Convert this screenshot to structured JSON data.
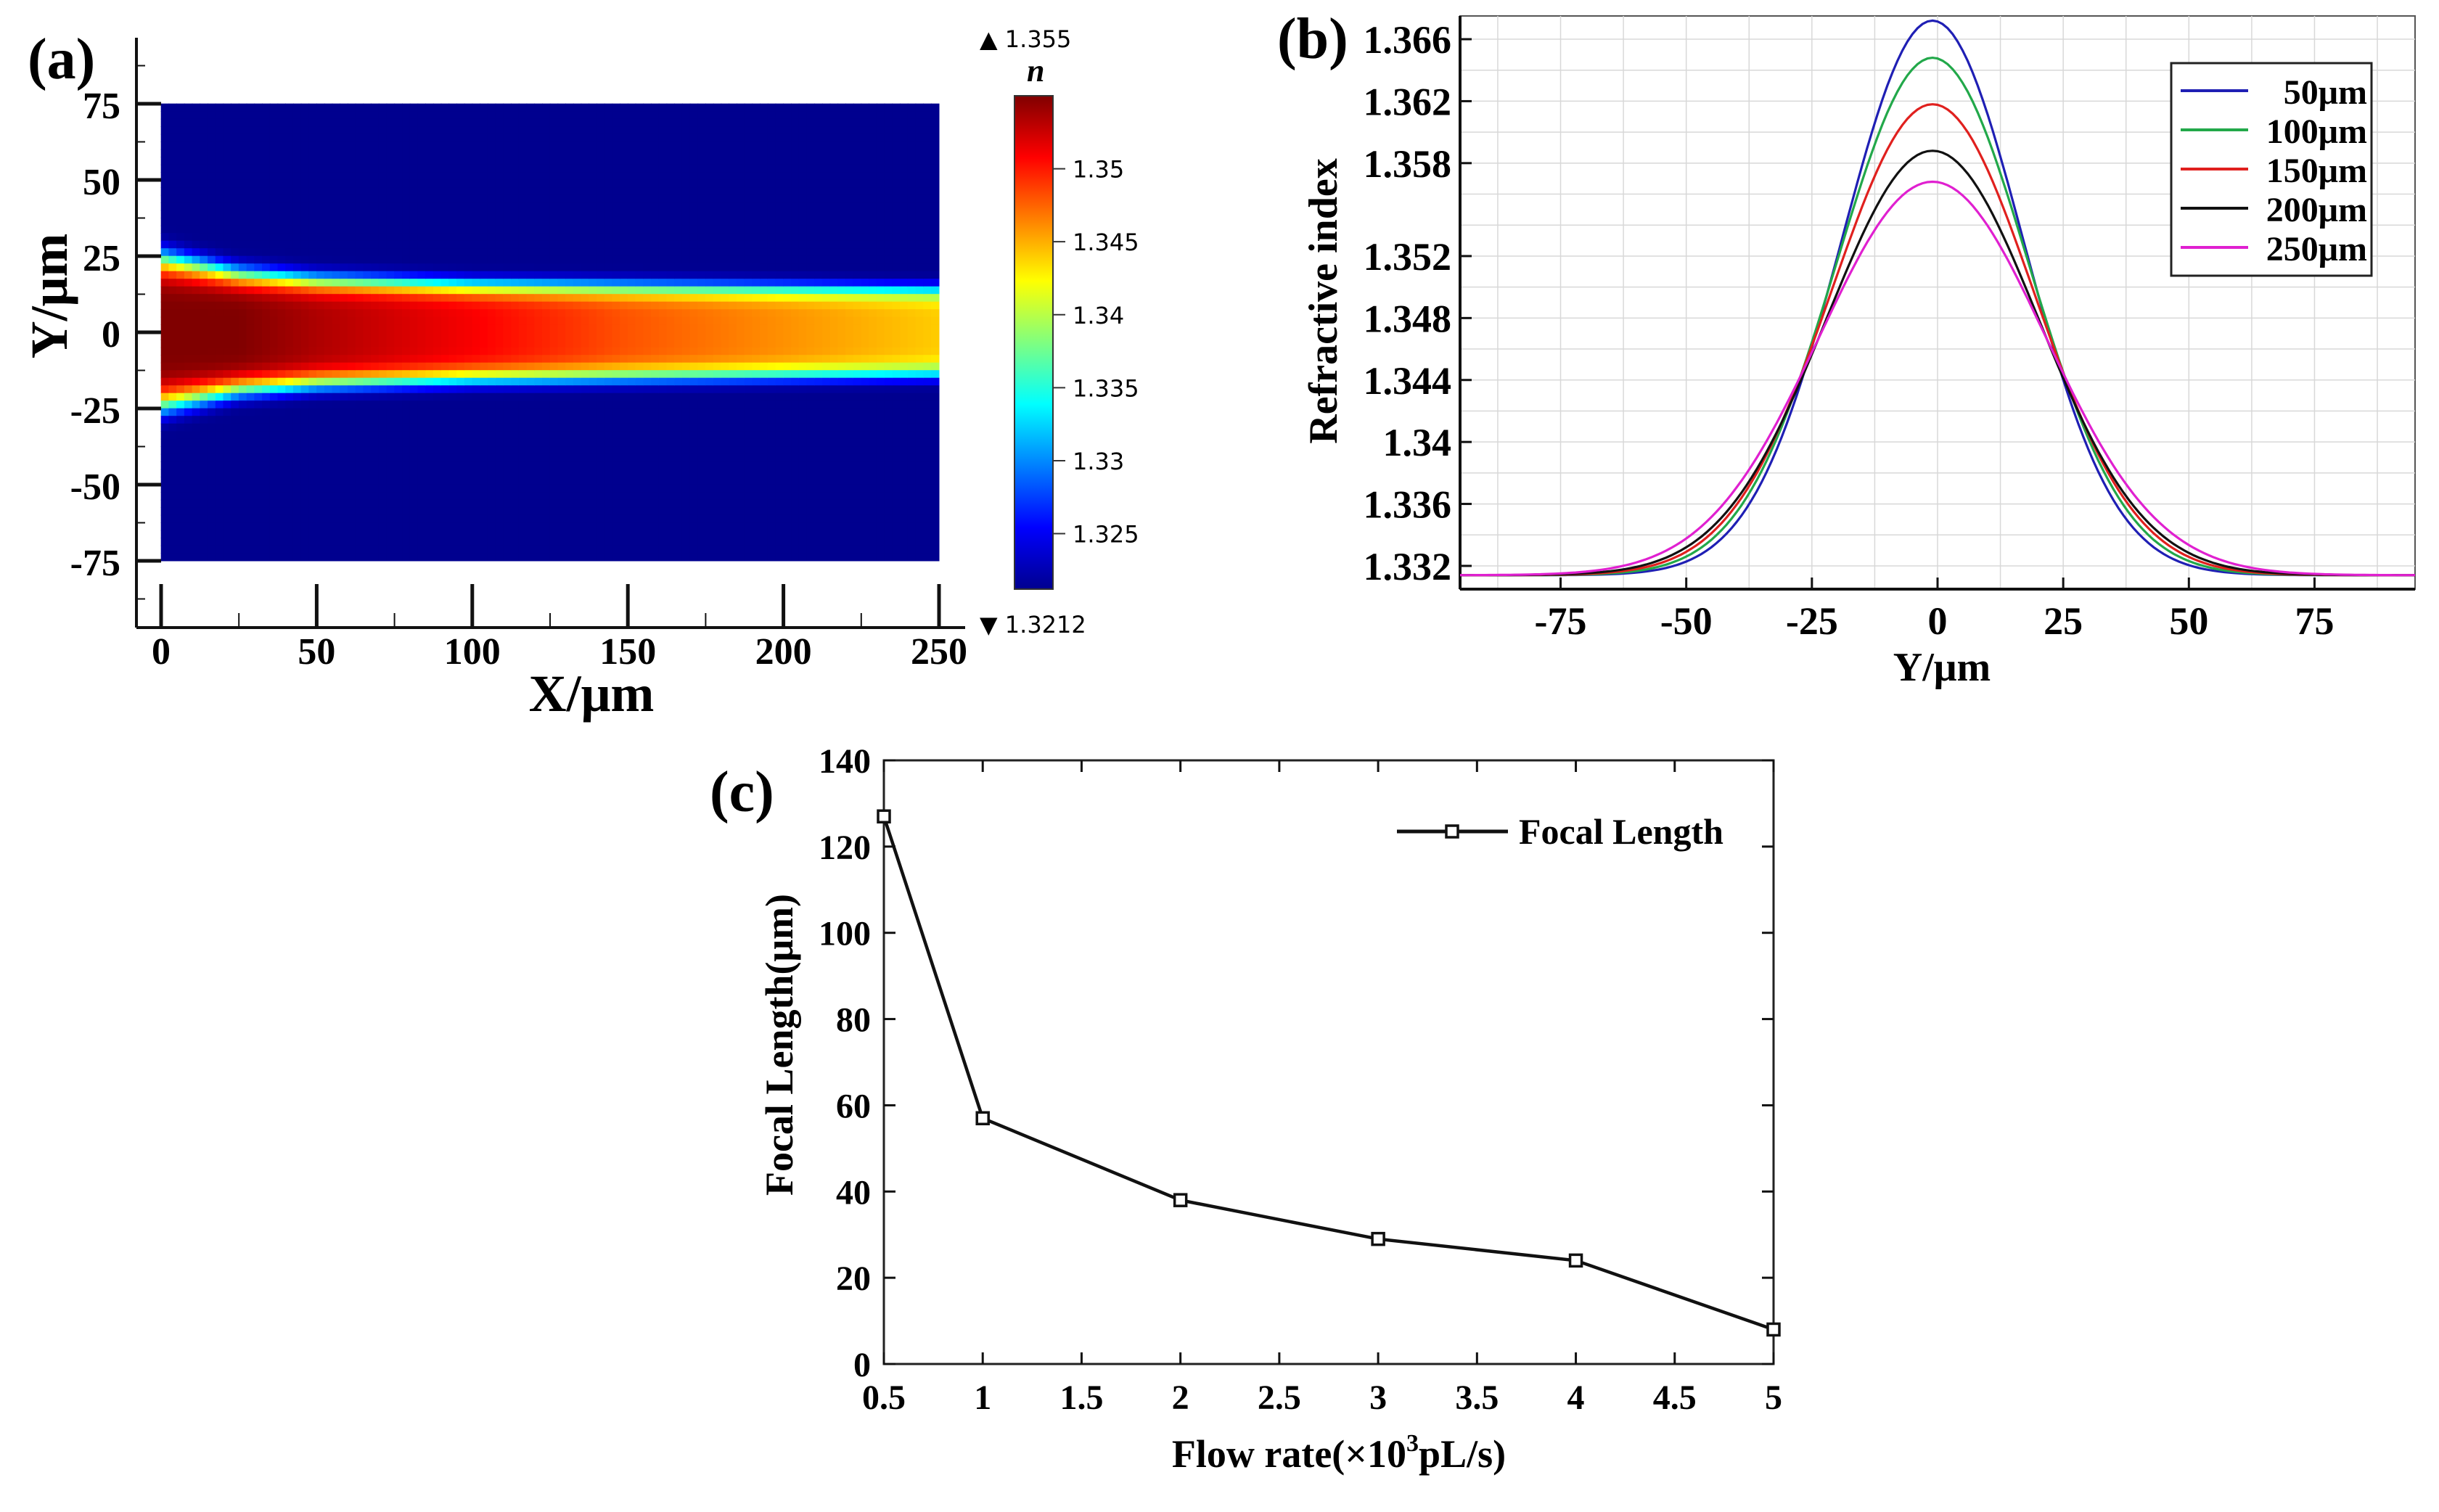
{
  "chart_data": [
    {
      "panel": "(a)",
      "type": "heatmap",
      "xlabel": "X/μm",
      "ylabel": "Y/μm",
      "xlim": [
        0,
        250
      ],
      "ylim": [
        -75,
        75
      ],
      "x_ticks": [
        "0",
        "50",
        "100",
        "150",
        "200",
        "250"
      ],
      "y_ticks": [
        "75",
        "50",
        "25",
        "0",
        "-25",
        "-50",
        "-75"
      ],
      "colorbar": {
        "title": "n",
        "max_label": "▲ 1.355",
        "min_label": "▼ 1.3212",
        "range": [
          1.3212,
          1.355
        ],
        "ticks": [
          "1.35",
          "1.345",
          "1.34",
          "1.335",
          "1.33",
          "1.325"
        ],
        "colormap": "jet"
      },
      "field": {
        "background_n": 1.3212,
        "center_n_profile": {
          "x": [
            0,
            25,
            50,
            100,
            150,
            200,
            250
          ],
          "n": [
            1.355,
            1.355,
            1.3535,
            1.351,
            1.348,
            1.346,
            1.344
          ]
        },
        "half_width_profile": {
          "x": [
            0,
            25,
            50,
            100,
            150,
            200,
            250
          ],
          "y": [
            24,
            19,
            17,
            15.5,
            15,
            14.5,
            14
          ]
        }
      }
    },
    {
      "panel": "(b)",
      "type": "line",
      "xlabel": "Y/μm",
      "ylabel": "Refractive index",
      "xlim": [
        -95,
        95
      ],
      "ylim": [
        1.3305,
        1.3675
      ],
      "x_ticks": [
        "-75",
        "-50",
        "-25",
        "0",
        "25",
        "50",
        "75"
      ],
      "y_ticks": [
        "1.366",
        "1.362",
        "1.358",
        "1.352",
        "1.348",
        "1.344",
        "1.34",
        "1.336",
        "1.332"
      ],
      "legend_position": "top-right",
      "series": [
        {
          "name": "50μm",
          "color": "#1f1fb4",
          "peak": 1.3672,
          "sigma": 18.0
        },
        {
          "name": "100μm",
          "color": "#22a84a",
          "peak": 1.3648,
          "sigma": 19.0
        },
        {
          "name": "150μm",
          "color": "#e0201e",
          "peak": 1.3618,
          "sigma": 20.0
        },
        {
          "name": "200μm",
          "color": "#111111",
          "peak": 1.3588,
          "sigma": 21.0
        },
        {
          "name": "250μm",
          "color": "#e020d0",
          "peak": 1.3568,
          "sigma": 22.5
        }
      ],
      "baseline": 1.3314,
      "center": -1
    },
    {
      "panel": "(c)",
      "type": "line",
      "xlabel_main": "Flow rate(×10",
      "xlabel_sup": "3",
      "xlabel_tail": "pL/s)",
      "ylabel": "Focal Length(μm)",
      "xlim": [
        0.5,
        5
      ],
      "ylim": [
        0,
        140
      ],
      "x_ticks": [
        "0.5",
        "1",
        "1.5",
        "2",
        "2.5",
        "3",
        "3.5",
        "4",
        "4.5",
        "5"
      ],
      "y_ticks": [
        "140",
        "120",
        "100",
        "80",
        "60",
        "40",
        "20",
        "0"
      ],
      "legend_position": "top-right",
      "series": [
        {
          "name": "Focal Length",
          "color": "#111111",
          "x": [
            0.5,
            1,
            2,
            3,
            4,
            5
          ],
          "y": [
            127,
            57,
            38,
            29,
            24,
            8
          ]
        }
      ]
    }
  ]
}
